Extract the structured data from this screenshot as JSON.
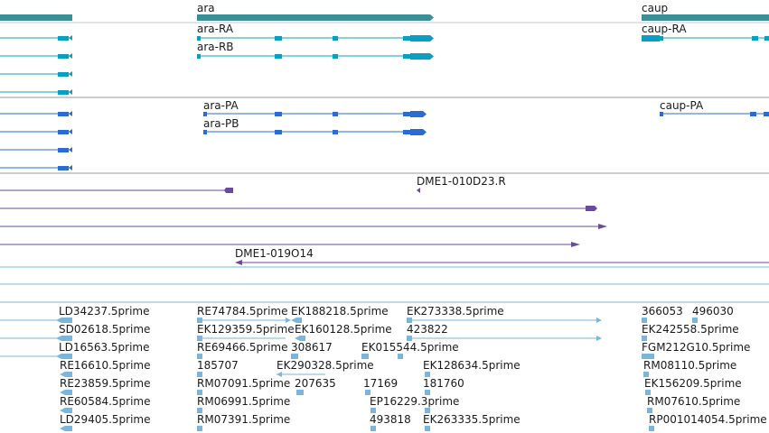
{
  "colors": {
    "gene": "#3a8f96",
    "transcript_ra": "#0a9fc2",
    "transcript_pa": "#2a6ccf",
    "clone": "#6b4a9e",
    "est": "#7ab5dc",
    "separator": "#7ab8d6",
    "separator_top": "#c8c8c8"
  },
  "genes": [
    {
      "label": "ara"
    },
    {
      "label": "caup"
    }
  ],
  "transcripts_r": [
    "ara-RA",
    "ara-RB",
    "caup-RA"
  ],
  "transcripts_p": [
    "ara-PA",
    "ara-PB",
    "caup-PA"
  ],
  "clones": [
    "DME1-010D23.R",
    "DME1-019O14"
  ],
  "ests": [
    "LD34237.5prime",
    "RE74784.5prime",
    "EK188218.5prime",
    "EK273338.5prime",
    "366053",
    "496030",
    "SD02618.5prime",
    "EK129359.5prime",
    "EK160128.5prime",
    "423822",
    "EK242558.5prime",
    "LD16563.5prime",
    "RE69466.5prime",
    "308617",
    "EK015544.5prime",
    "FGM212G10.5prime",
    "RE16610.5prime",
    "185707",
    "EK290328.5prime",
    "EK128634.5prime",
    "RM08110.5prime",
    "RE23859.5prime",
    "RM07091.5prime",
    "207635",
    "17169",
    "181760",
    "EK156209.5prime",
    "RE60584.5prime",
    "RM06991.5prime",
    "EP16229.3prime",
    "RM07610.5prime",
    "LD29405.5prime",
    "RM07391.5prime",
    "493818",
    "EK263335.5prime",
    "RP001014054.5prime"
  ]
}
